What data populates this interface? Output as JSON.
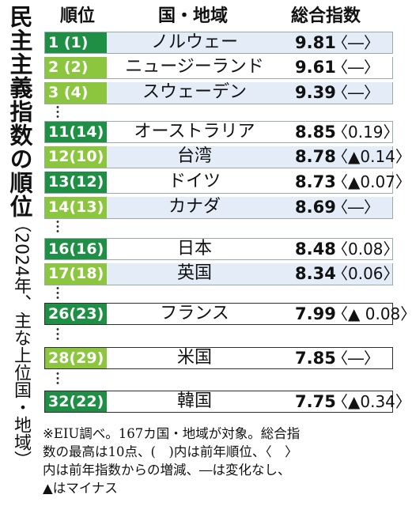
{
  "title": "民主主義指数の順位",
  "subtitle": "（2024年、主な上位国・地域）",
  "headers": {
    "rank": "順位",
    "country": "国・地域",
    "score": "総合指数"
  },
  "rows": [
    {
      "rank": "1 (1)",
      "country": "ノルウェー",
      "score": "9.81",
      "change": "〈―〉"
    },
    {
      "rank": "2 (2)",
      "country": "ニュージーランド",
      "score": "9.61",
      "change": "〈―〉"
    },
    {
      "rank": "3 (4)",
      "country": "スウェーデン",
      "score": "9.39",
      "change": "〈―〉"
    },
    {
      "rank": "11(14)",
      "country": "オーストラリア",
      "score": "8.85",
      "change": "〈0.19〉"
    },
    {
      "rank": "12(10)",
      "country": "台湾",
      "score": "8.78",
      "change": "〈▲0.14〉"
    },
    {
      "rank": "13(12)",
      "country": "ドイツ",
      "score": "8.73",
      "change": "〈▲0.07〉"
    },
    {
      "rank": "14(13)",
      "country": "カナダ",
      "score": "8.69",
      "change": "〈―〉"
    },
    {
      "rank": "16(16)",
      "country": "日本",
      "score": "8.48",
      "change": "〈0.08〉"
    },
    {
      "rank": "17(18)",
      "country": "英国",
      "score": "8.34",
      "change": "〈0.06〉"
    },
    {
      "rank": "26(23)",
      "country": "フランス",
      "score": "7.99",
      "change": "〈▲ 0.08〉"
    },
    {
      "rank": "28(29)",
      "country": "米国",
      "score": "7.85",
      "change": "〈―〉"
    },
    {
      "rank": "32(22)",
      "country": "韓国",
      "score": "7.75",
      "change": "〈▲0.34〉"
    }
  ],
  "footnote": [
    "※EIU調べ。167カ国・地域が対象。総合指",
    "数の最高は10点、(　)内は前年順位、〈　〉",
    "内は前年指数からの増減、―は変化なし、",
    "▲はマイナス"
  ]
}
